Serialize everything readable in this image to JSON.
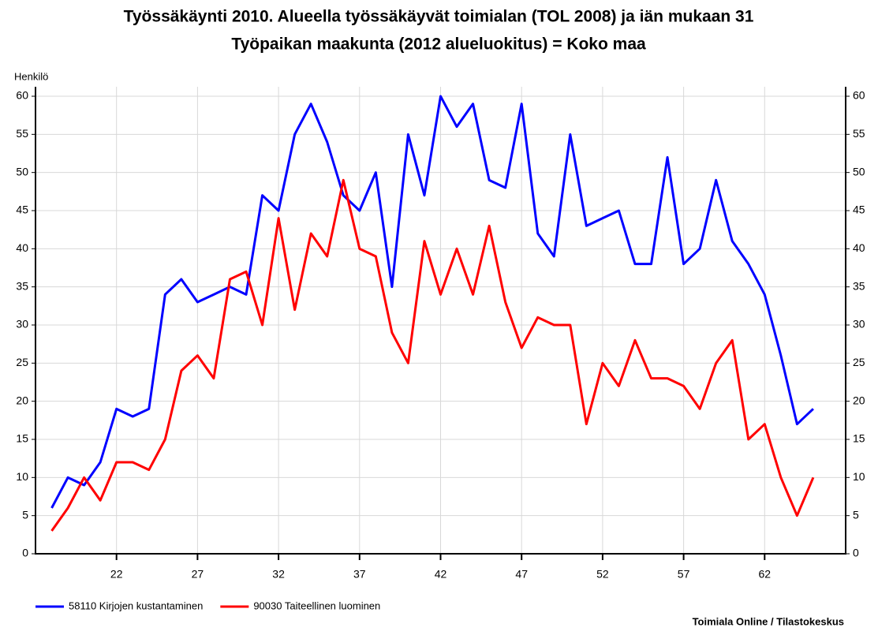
{
  "chart_data": {
    "type": "line",
    "title": "Työssäkäynti 2010. Alueella työssäkäyvät toimialan (TOL 2008) ja iän mukaan 31",
    "subtitle": "Työpaikan maakunta (2012 alueluokitus) = Koko maa",
    "y_label": "Henkilö",
    "source": "Toimiala Online / Tilastokeskus",
    "x": [
      18,
      19,
      20,
      21,
      22,
      23,
      24,
      25,
      26,
      27,
      28,
      29,
      30,
      31,
      32,
      33,
      34,
      35,
      36,
      37,
      38,
      39,
      40,
      41,
      42,
      43,
      44,
      45,
      46,
      47,
      48,
      49,
      50,
      51,
      52,
      53,
      54,
      55,
      56,
      57,
      58,
      59,
      60,
      61,
      62,
      63,
      64,
      65
    ],
    "series": [
      {
        "name": "58110 Kirjojen kustantaminen",
        "color": "#0000ff",
        "values": [
          6,
          10,
          9,
          12,
          19,
          18,
          19,
          34,
          36,
          33,
          34,
          35,
          34,
          47,
          45,
          55,
          59,
          54,
          47,
          45,
          50,
          35,
          55,
          47,
          60,
          56,
          59,
          49,
          48,
          59,
          42,
          39,
          55,
          43,
          44,
          45,
          38,
          38,
          52,
          38,
          40,
          49,
          41,
          38,
          34,
          26,
          17,
          19
        ]
      },
      {
        "name": "90030 Taiteellinen luominen",
        "color": "#ff0000",
        "values": [
          3,
          6,
          10,
          7,
          12,
          12,
          11,
          15,
          24,
          26,
          23,
          36,
          37,
          30,
          44,
          32,
          42,
          39,
          49,
          40,
          39,
          29,
          25,
          41,
          34,
          40,
          34,
          43,
          33,
          27,
          31,
          30,
          30,
          17,
          25,
          22,
          28,
          23,
          23,
          22,
          19,
          25,
          28,
          15,
          17,
          10,
          5,
          10
        ]
      }
    ],
    "xlim": [
      17,
      67
    ],
    "xticks": [
      22,
      27,
      32,
      37,
      42,
      47,
      52,
      57,
      62
    ],
    "ylim": [
      0,
      60
    ],
    "yticks": [
      0,
      5,
      10,
      15,
      20,
      25,
      30,
      35,
      40,
      45,
      50,
      55,
      60
    ],
    "grid": true,
    "legend": "bottom-left"
  }
}
